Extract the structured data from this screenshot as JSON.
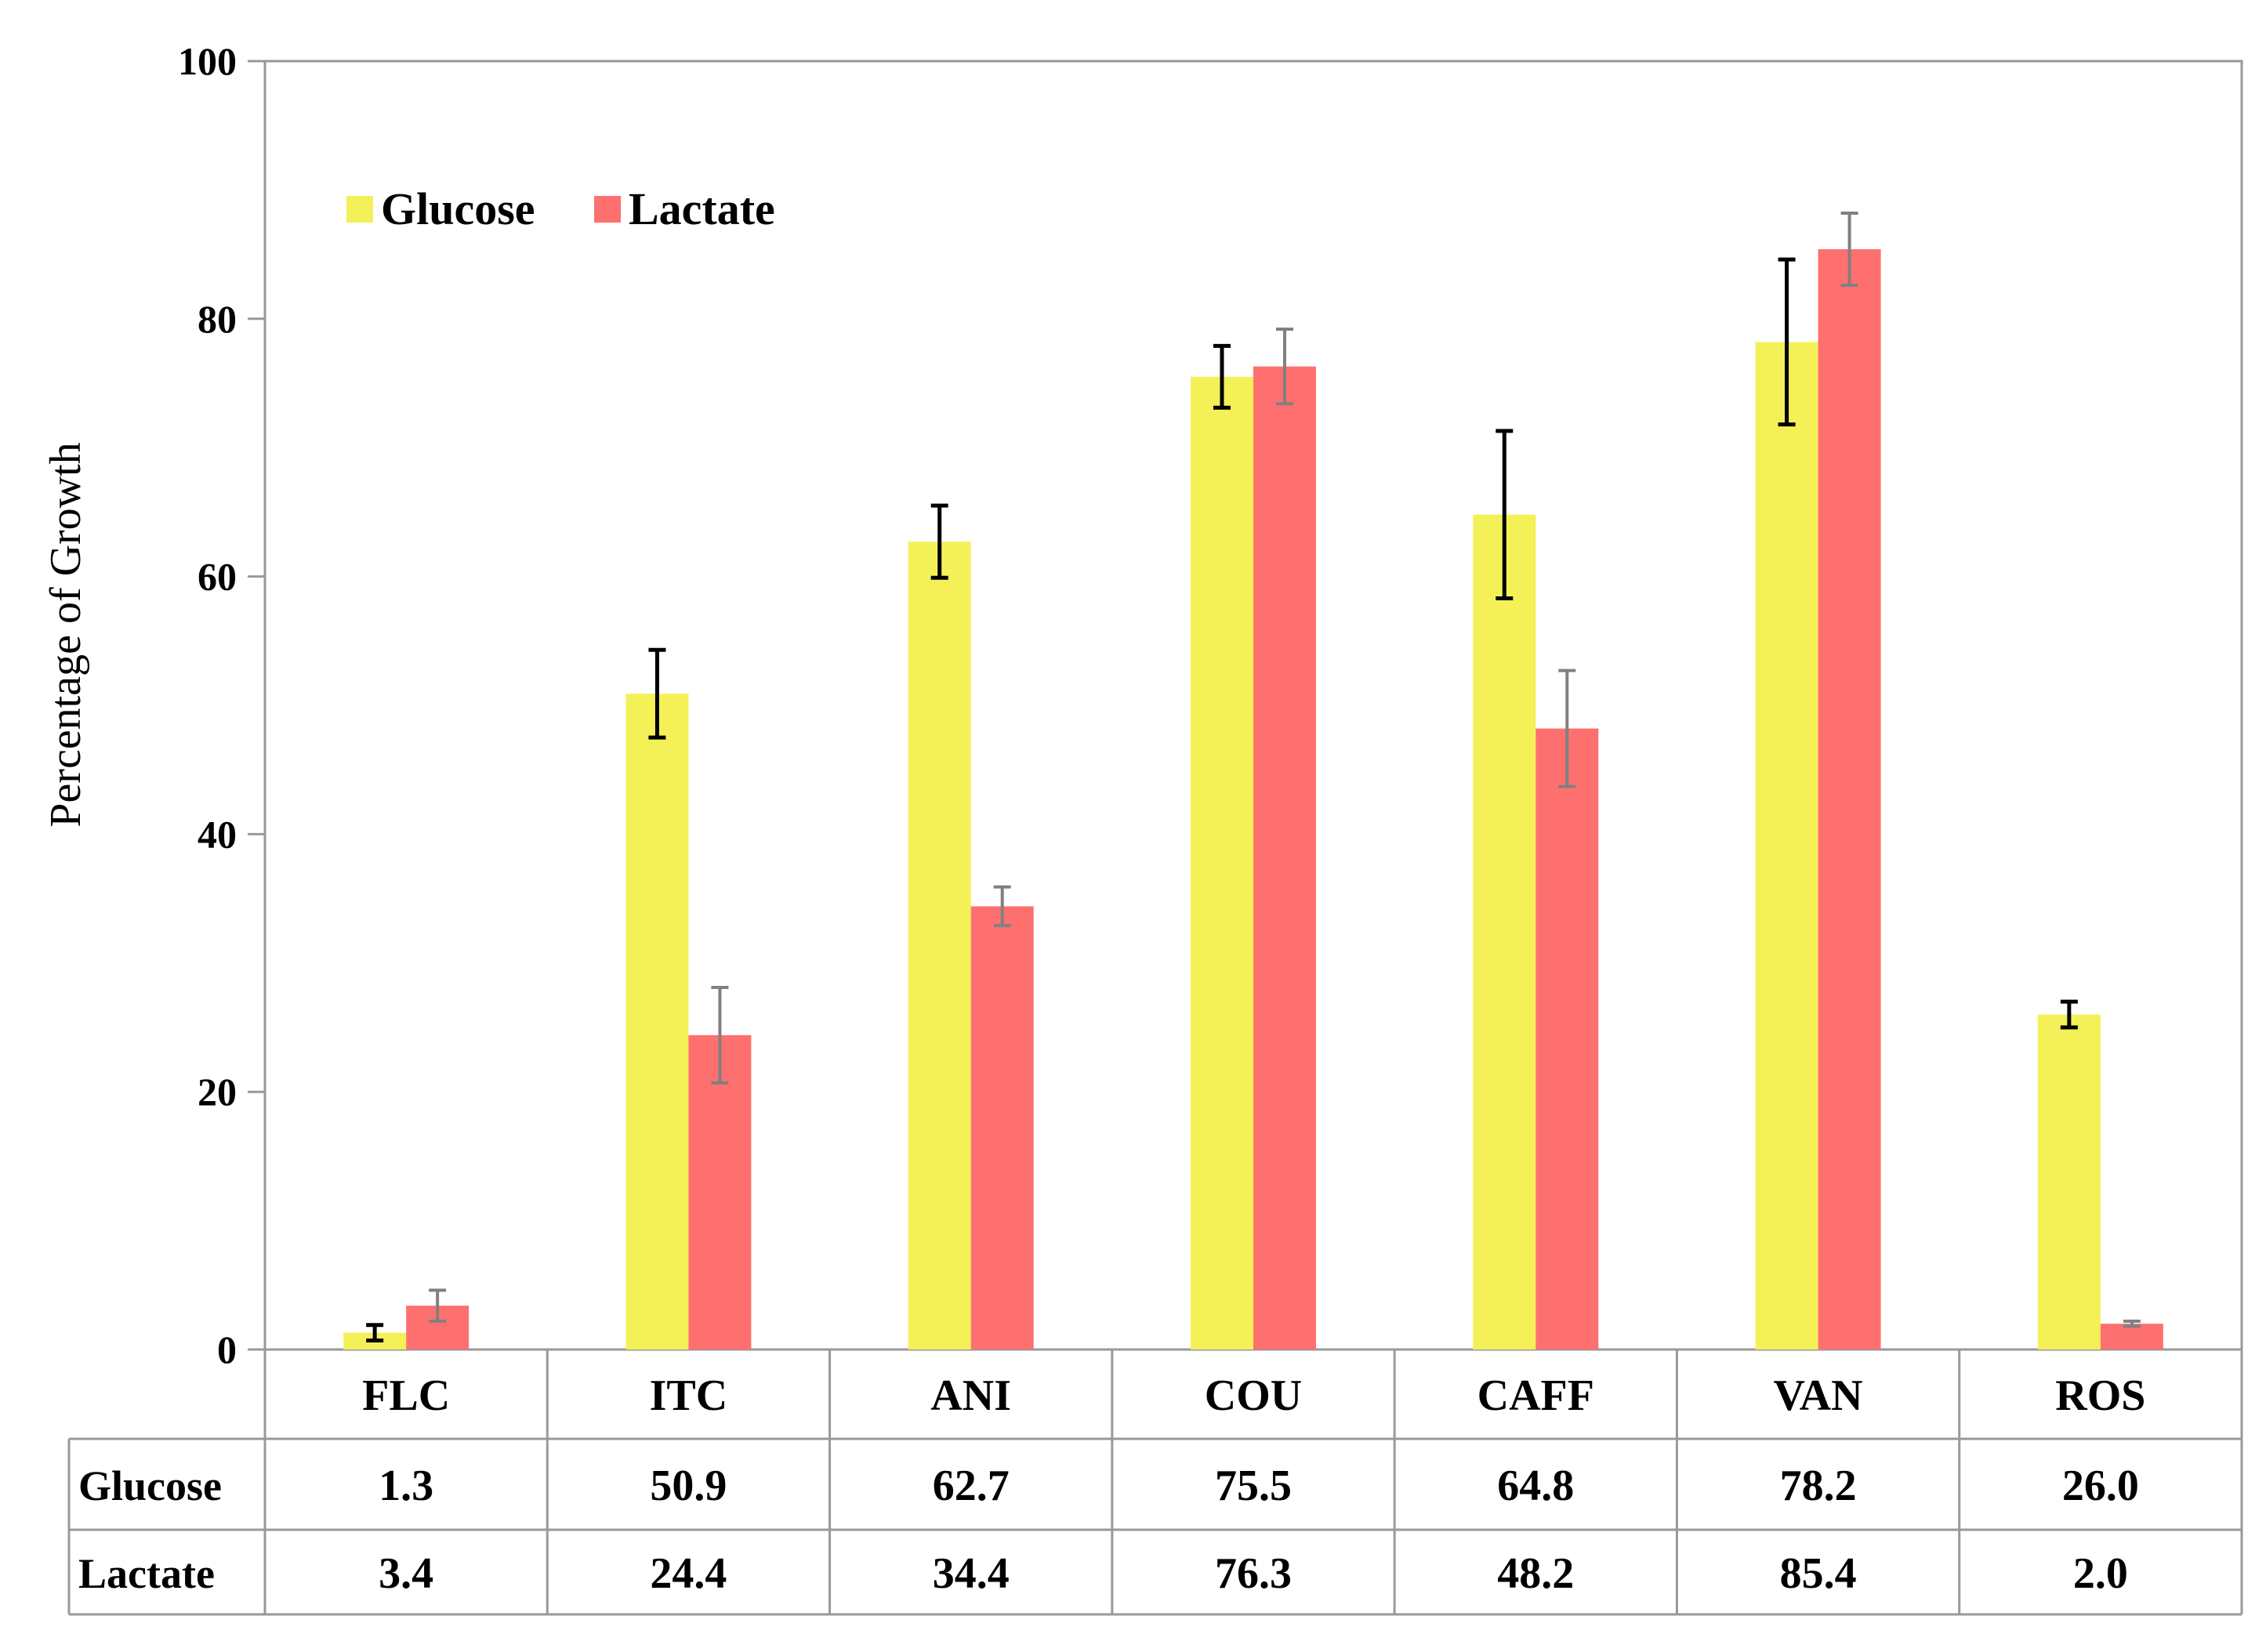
{
  "chart_data": {
    "type": "bar",
    "title": "",
    "xlabel": "",
    "ylabel": "Percentage of Growth",
    "ylim": [
      0,
      100
    ],
    "yticks": [
      0,
      20,
      40,
      60,
      80,
      100
    ],
    "categories": [
      "FLC",
      "ITC",
      "ANI",
      "COU",
      "CAFF",
      "VAN",
      "ROS"
    ],
    "legend_position": "top-left",
    "grid": false,
    "series": [
      {
        "name": "Glucose",
        "color": "#f4f158",
        "error_color": "#000000",
        "values": [
          1.3,
          50.9,
          62.7,
          75.5,
          64.8,
          78.2,
          26.0
        ],
        "errors": [
          0.6,
          3.4,
          2.8,
          2.4,
          6.5,
          6.4,
          1.0
        ],
        "labels": [
          "1.3",
          "50.9",
          "62.7",
          "75.5",
          "64.8",
          "78.2",
          "26.0"
        ]
      },
      {
        "name": "Lactate",
        "color": "#fe706f",
        "error_color": "#808080",
        "values": [
          3.4,
          24.4,
          34.4,
          76.3,
          48.2,
          85.4,
          2.0
        ],
        "errors": [
          1.2,
          3.7,
          1.5,
          2.9,
          4.5,
          2.8,
          0.2
        ],
        "labels": [
          "3.4",
          "24.4",
          "34.4",
          "76.3",
          "48.2",
          "85.4",
          "2.0"
        ]
      }
    ]
  }
}
